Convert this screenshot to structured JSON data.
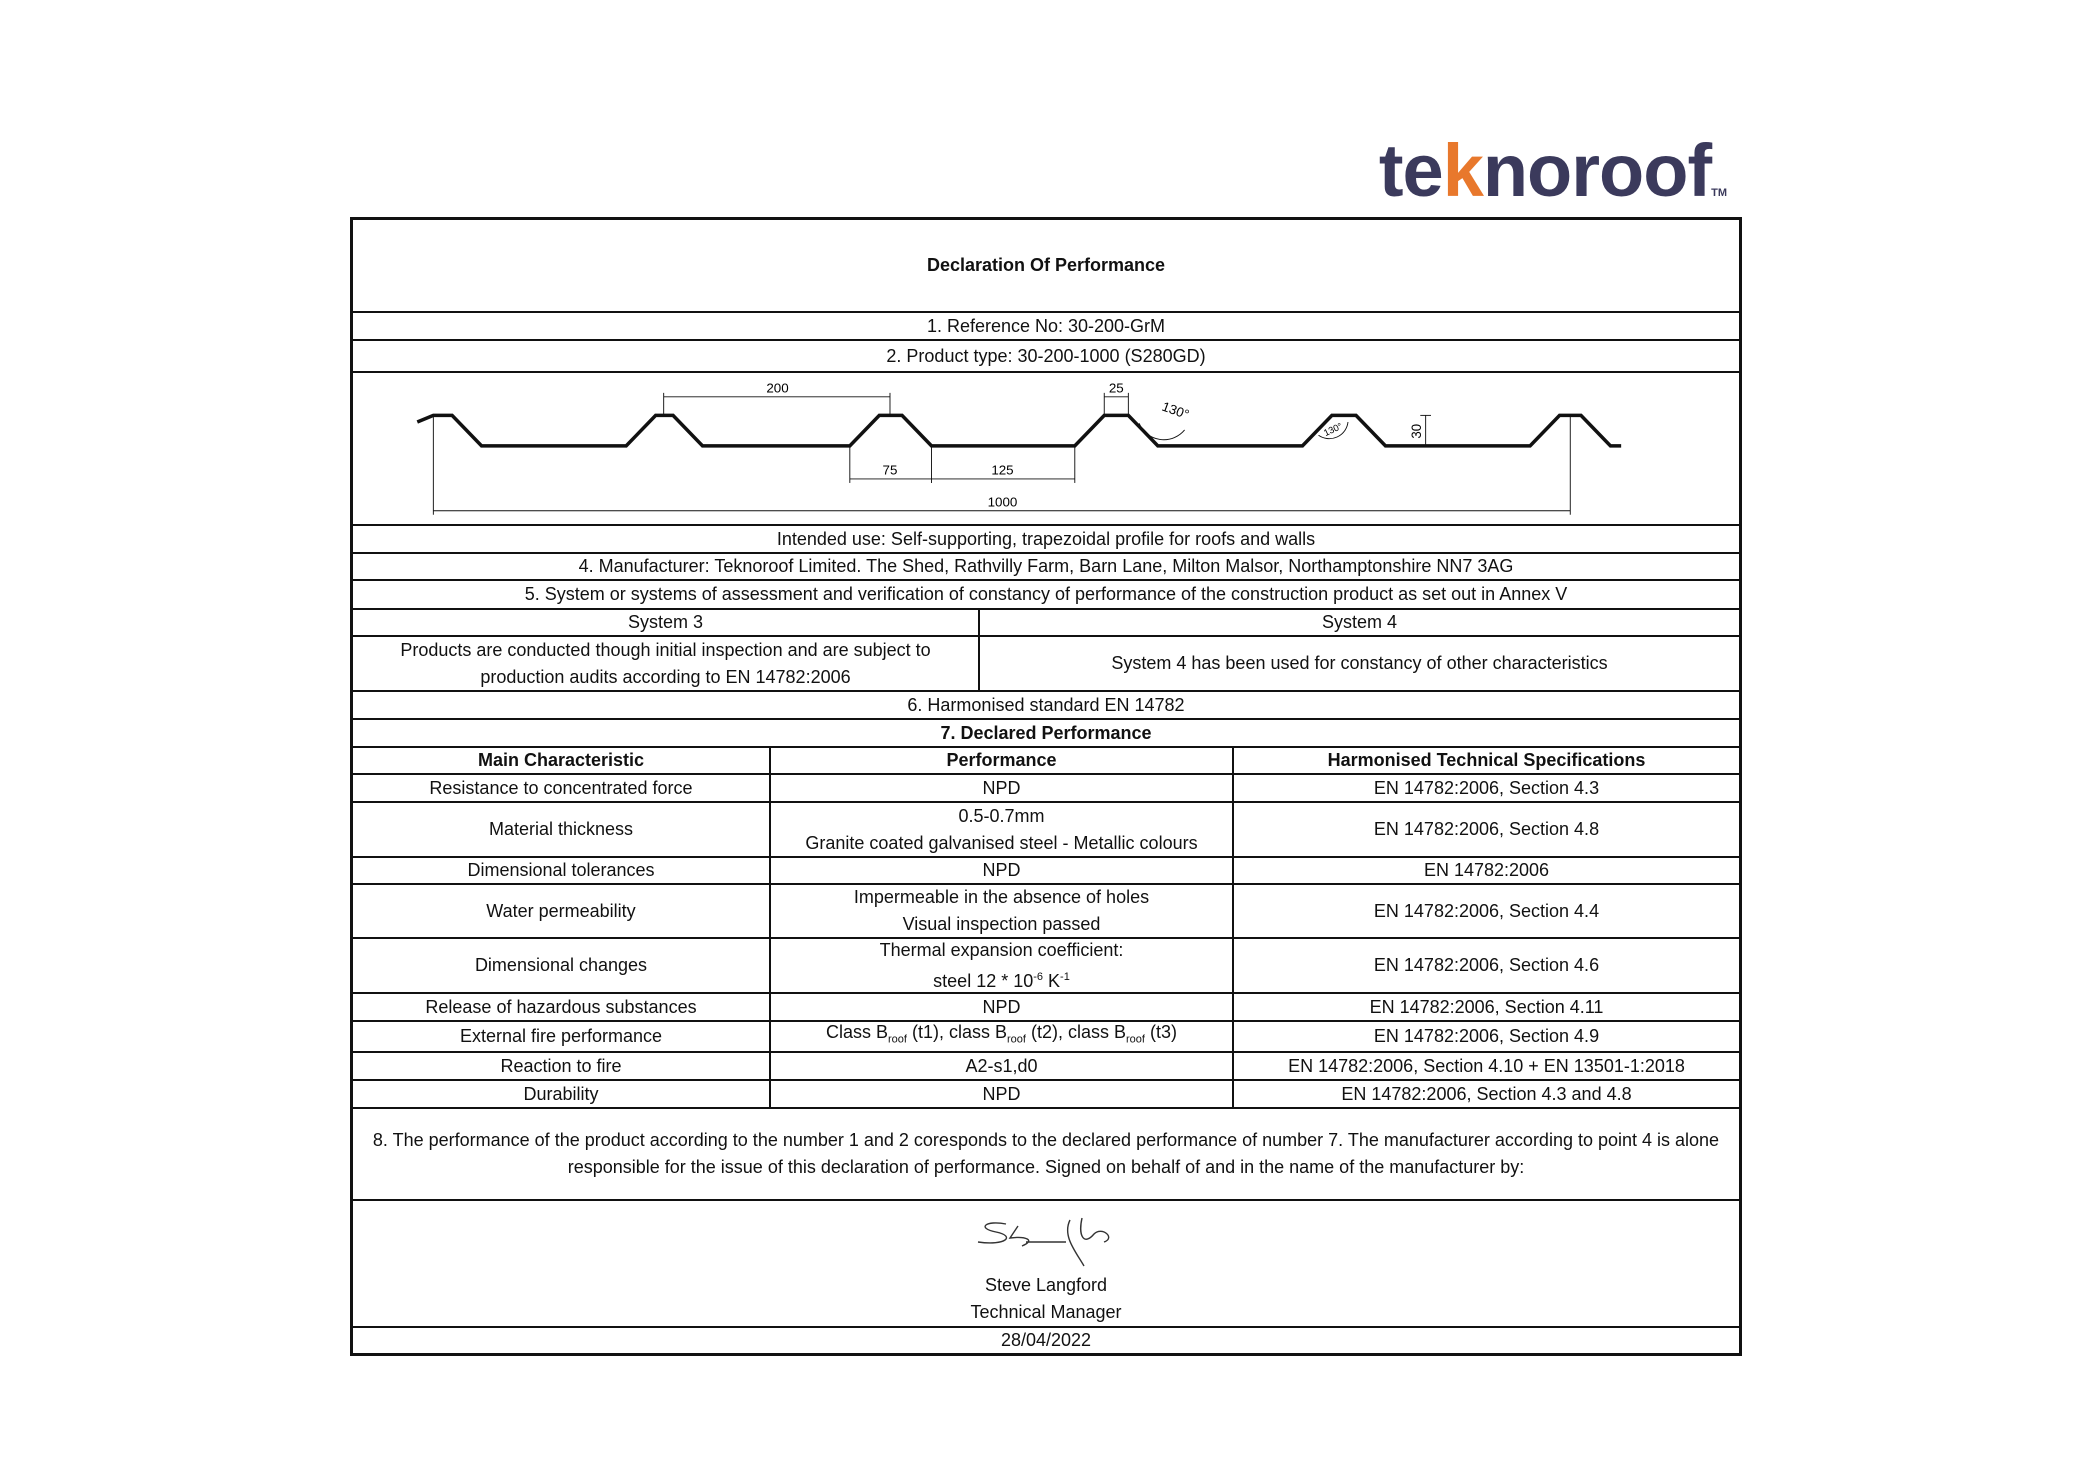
{
  "logo": {
    "parts": [
      "te",
      "k",
      "noroof"
    ],
    "trademark": "TM"
  },
  "title": "Declaration Of Performance",
  "reference": "1. Reference No: 30-200-GrM",
  "product_type": "2. Product type: 30-200-1000 (S280GD)",
  "drawing": {
    "labels": {
      "pitch": "200",
      "crest": "25",
      "angle_top": "130°",
      "angle_small": "130°",
      "height": "30",
      "slope_base": "75",
      "trough": "125",
      "cover_width": "1000"
    }
  },
  "intended_use": "Intended use: Self-supporting, trapezoidal profile for roofs and walls",
  "manufacturer": "4. Manufacturer: Teknoroof Limited. The Shed, Rathvilly Farm, Barn Lane, Milton Malsor, Northamptonshire NN7 3AG",
  "system_heading": "5. System or systems of assessment and verification of constancy of performance of the construction product as set out in Annex V",
  "systems": [
    {
      "name": "System 3",
      "description": "Products are conducted though initial inspection and are subject to production audits according to EN 14782:2006"
    },
    {
      "name": "System 4",
      "description": "System 4 has been used for constancy of other characteristics"
    }
  ],
  "harmonised_standard": "6. Harmonised standard EN 14782",
  "declared_heading": "7. Declared Performance",
  "table": {
    "header": [
      "Main Characteristic",
      "Performance",
      "Harmonised Technical Specifications"
    ],
    "rows": [
      [
        [
          "Resistance to concentrated force"
        ],
        [
          "NPD"
        ],
        [
          "EN 14782:2006, Section 4.3"
        ]
      ],
      [
        [
          "Material thickness"
        ],
        [
          "0.5-0.7mm",
          "Granite coated galvanised steel - Metallic colours"
        ],
        [
          "EN 14782:2006, Section 4.8"
        ]
      ],
      [
        [
          "Dimensional tolerances"
        ],
        [
          "NPD"
        ],
        [
          "EN 14782:2006"
        ]
      ],
      [
        [
          "Water permeability"
        ],
        [
          "Impermeable in the absence of holes",
          "Visual inspection passed"
        ],
        [
          "EN 14782:2006, Section 4.4"
        ]
      ],
      [
        [
          "Dimensional changes"
        ],
        [
          "Thermal expansion coefficient:",
          [
            {
              "text": "steel 12 * 10"
            },
            {
              "sup": "-6"
            },
            {
              "text": " K"
            },
            {
              "sup": "-1"
            }
          ]
        ],
        [
          "EN 14782:2006, Section 4.6"
        ]
      ],
      [
        [
          "Release of hazardous substances"
        ],
        [
          "NPD"
        ],
        [
          "EN 14782:2006, Section 4.11"
        ]
      ],
      [
        [
          "External fire performance"
        ],
        [
          [
            {
              "text": "Class B"
            },
            {
              "sub": "roof"
            },
            {
              "text": " (t1), class B"
            },
            {
              "sub": "roof"
            },
            {
              "text": " (t2), class B"
            },
            {
              "sub": "roof"
            },
            {
              "text": " (t3)"
            }
          ]
        ],
        [
          "EN 14782:2006, Section 4.9"
        ]
      ],
      [
        [
          "Reaction to fire"
        ],
        [
          "A2-s1,d0"
        ],
        [
          "EN 14782:2006, Section 4.10 + EN 13501-1:2018"
        ]
      ],
      [
        [
          "Durability"
        ],
        [
          "NPD"
        ],
        [
          "EN 14782:2006, Section 4.3 and 4.8"
        ]
      ]
    ]
  },
  "statement": "8. The performance of the product according to the number 1 and 2 coresponds to the declared performance of number 7. The manufacturer according to point 4 is alone responsible for the issue of this declaration of performance. Signed on behalf of and in the name of the manufacturer by:",
  "signatory": {
    "name": "Steve Langford",
    "role": "Technical Manager"
  },
  "date": "28/04/2022"
}
